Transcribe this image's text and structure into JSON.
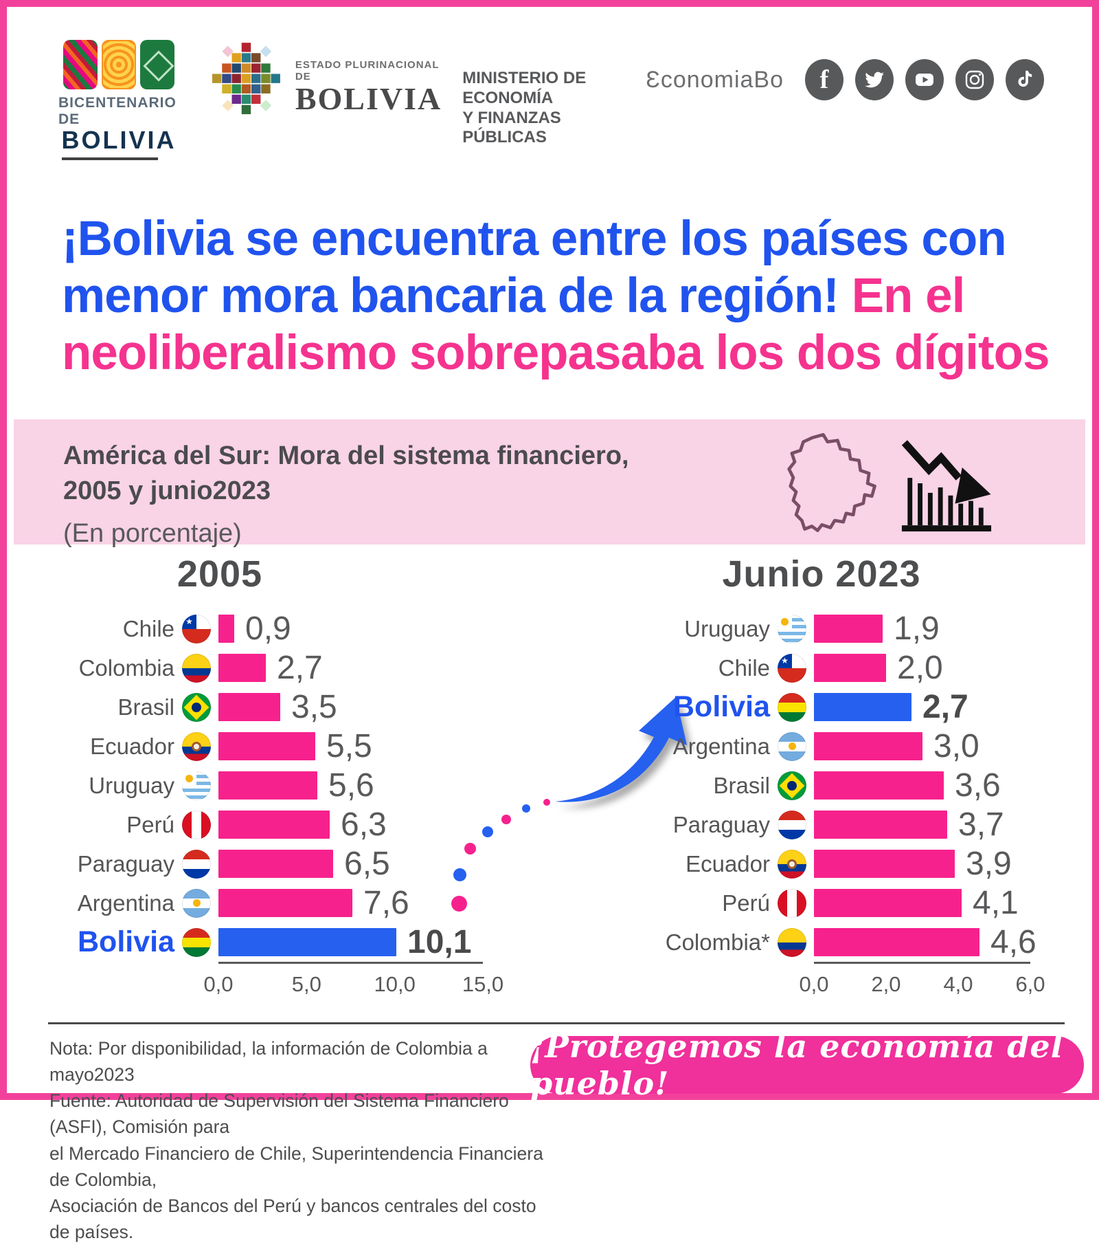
{
  "header": {
    "bicentenario": {
      "line_small": "BICENTENARIO DE",
      "line_big": "BOLIVIA"
    },
    "estado": {
      "line_small": "ESTADO PLURINACIONAL DE",
      "line_big": "BOLIVIA"
    },
    "ministerio": {
      "line1": "MINISTERIO DE ECONOMÍA",
      "line2": "Y FINANZAS PÚBLICAS"
    },
    "social_handle": "ƐconomiaBo",
    "social_icons": [
      "facebook",
      "twitter",
      "youtube",
      "instagram",
      "tiktok"
    ]
  },
  "title": {
    "blue": "¡Bolivia se encuentra entre los países con menor mora bancaria de la región!",
    "pink": "En el neoliberalismo sobrepasaba los dos dígitos"
  },
  "banner": {
    "heading_line1": "América del Sur: Mora del sistema financiero,",
    "heading_line2": "2005 y junio2023",
    "subheading": "(En porcentaje)"
  },
  "chart_data": [
    {
      "type": "bar",
      "orientation": "horizontal",
      "title": "2005",
      "categories": [
        "Chile",
        "Colombia",
        "Brasil",
        "Ecuador",
        "Uruguay",
        "Perú",
        "Paraguay",
        "Argentina",
        "Bolivia"
      ],
      "values": [
        0.9,
        2.7,
        3.5,
        5.5,
        5.6,
        6.3,
        6.5,
        7.6,
        10.1
      ],
      "display_values": [
        "0,9",
        "2,7",
        "3,5",
        "5,5",
        "5,6",
        "6,3",
        "6,5",
        "7,6",
        "10,1"
      ],
      "flags": [
        "chile",
        "colombia",
        "brasil",
        "ecuador",
        "uruguay",
        "peru",
        "paraguay",
        "argentina",
        "bolivia"
      ],
      "highlight": "Bolivia",
      "xlim": [
        0,
        15
      ],
      "tick_labels": [
        "0,0",
        "5,0",
        "10,0",
        "15,0"
      ],
      "bar_color": "#f7218d",
      "highlight_color": "#2560ef",
      "grid": false,
      "legend": false
    },
    {
      "type": "bar",
      "orientation": "horizontal",
      "title": "Junio 2023",
      "categories": [
        "Uruguay",
        "Chile",
        "Bolivia",
        "Argentina",
        "Brasil",
        "Paraguay",
        "Ecuador",
        "Perú",
        "Colombia*"
      ],
      "values": [
        1.9,
        2.0,
        2.7,
        3.0,
        3.6,
        3.7,
        3.9,
        4.1,
        4.6
      ],
      "display_values": [
        "1,9",
        "2,0",
        "2,7",
        "3,0",
        "3,6",
        "3,7",
        "3,9",
        "4,1",
        "4,6"
      ],
      "flags": [
        "uruguay",
        "chile",
        "bolivia",
        "argentina",
        "brasil",
        "paraguay",
        "ecuador",
        "peru",
        "colombia"
      ],
      "highlight": "Bolivia",
      "xlim": [
        0,
        6
      ],
      "tick_labels": [
        "0,0",
        "2,0",
        "4,0",
        "6,0"
      ],
      "bar_color": "#f7218d",
      "highlight_color": "#2560ef",
      "grid": false,
      "legend": false
    }
  ],
  "footer": {
    "note_lines": [
      "Nota: Por disponibilidad, la información de Colombia a mayo2023",
      "Fuente: Autoridad de Supervisión del Sistema Financiero (ASFI), Comisión para",
      "el Mercado Financiero de Chile, Superintendencia Financiera de Colombia,",
      "Asociación de Bancos del Perú y bancos centrales del costo de países."
    ],
    "badge": "¡Protegemos la economía del pueblo!"
  },
  "colors": {
    "frame_border": "#f2419b",
    "title_blue": "#2053ee",
    "title_pink": "#f5338f",
    "banner_bg": "#f9d3e6",
    "bar_pink": "#f7218d",
    "bar_blue": "#2560ef",
    "text_gray": "#58595b",
    "badge_pink": "#f0309b"
  }
}
